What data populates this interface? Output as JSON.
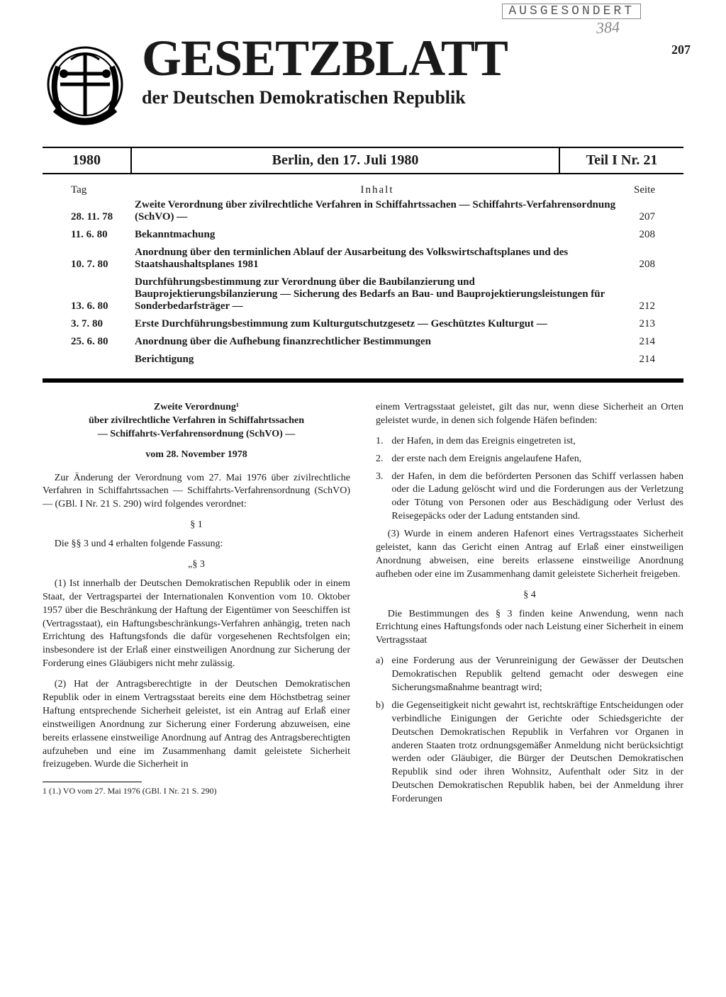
{
  "stamp": "AUSGESONDERT",
  "stamp_scribble": "384",
  "page_number_top": "207",
  "masthead": {
    "title": "GESETZBLATT",
    "subtitle": "der Deutschen Demokratischen Republik"
  },
  "issue_bar": {
    "year": "1980",
    "dateline": "Berlin, den 17. Juli 1980",
    "issue": "Teil I Nr. 21"
  },
  "toc": {
    "head_tag": "Tag",
    "head_title": "Inhalt",
    "head_page": "Seite",
    "rows": [
      {
        "tag": "28. 11. 78",
        "title": "Zweite Verordnung über zivilrechtliche Verfahren in Schiffahrtssachen — Schiffahrts-Verfahrensordnung (SchVO) —",
        "page": "207"
      },
      {
        "tag": "11. 6. 80",
        "title": "Bekanntmachung",
        "page": "208"
      },
      {
        "tag": "10. 7. 80",
        "title": "Anordnung über den terminlichen Ablauf der Ausarbeitung des Volkswirtschaftsplanes und des Staatshaushaltsplanes 1981",
        "page": "208"
      },
      {
        "tag": "13. 6. 80",
        "title": "Durchführungsbestimmung zur Verordnung über die Baubilanzierung und Bauprojektierungsbilanzierung — Sicherung des Bedarfs an Bau- und Bauprojektierungsleistungen für Sonderbedarfsträger —",
        "page": "212"
      },
      {
        "tag": "3. 7. 80",
        "title": "Erste Durchführungsbestimmung zum Kulturgutschutzgesetz — Geschütztes Kulturgut —",
        "page": "213"
      },
      {
        "tag": "25. 6. 80",
        "title": "Anordnung über die Aufhebung finanzrechtlicher Bestimmungen",
        "page": "214"
      },
      {
        "tag": "",
        "title": "Berichtigung",
        "page": "214"
      }
    ]
  },
  "article": {
    "heading_l1": "Zweite Verordnung¹",
    "heading_l2": "über zivilrechtliche Verfahren in Schiffahrtssachen",
    "heading_l3": "— Schiffahrts-Verfahrensordnung (SchVO) —",
    "heading_l4": "vom 28. November 1978",
    "intro": "Zur Änderung der Verordnung vom 27. Mai 1976 über zivilrechtliche Verfahren in Schiffahrtssachen — Schiffahrts-Verfahrensordnung (SchVO) — (GBl. I Nr. 21 S. 290) wird folgendes verordnet:",
    "s1_label": "§ 1",
    "s1_text": "Die §§ 3 und 4 erhalten folgende Fassung:",
    "s3_label": "„§ 3",
    "s3_p1": "(1) Ist innerhalb der Deutschen Demokratischen Republik oder in einem Staat, der Vertragspartei der Internationalen Konvention vom 10. Oktober 1957 über die Beschränkung der Haftung der Eigentümer von Seeschiffen ist (Vertragsstaat), ein Haftungsbeschränkungs-Verfahren anhängig, treten nach Errichtung des Haftungsfonds die dafür vorgesehenen Rechtsfolgen ein; insbesondere ist der Erlaß einer einstweiligen Anordnung zur Sicherung der Forderung eines Gläubigers nicht mehr zulässig.",
    "s3_p2": "(2) Hat der Antragsberechtigte in der Deutschen Demokratischen Republik oder in einem Vertragsstaat bereits eine dem Höchstbetrag seiner Haftung entsprechende Sicherheit geleistet, ist ein Antrag auf Erlaß einer einstweiligen Anordnung zur Sicherung einer Forderung abzuweisen, eine bereits erlassene einstweilige Anordnung auf Antrag des Antragsberechtigten aufzuheben und eine im Zusammenhang damit geleistete Sicherheit freizugeben. Wurde die Sicherheit in",
    "s3_p2b": "einem Vertragsstaat geleistet, gilt das nur, wenn diese Sicherheit an Orten geleistet wurde, in denen sich folgende Häfen befinden:",
    "s3_p2_items": [
      {
        "m": "1.",
        "t": "der Hafen, in dem das Ereignis eingetreten ist,"
      },
      {
        "m": "2.",
        "t": "der erste nach dem Ereignis angelaufene Hafen,"
      },
      {
        "m": "3.",
        "t": "der Hafen, in dem die beförderten Personen das Schiff verlassen haben oder die Ladung gelöscht wird und die Forderungen aus der Verletzung oder Tötung von Personen oder aus Beschädigung oder Verlust des Reisegepäcks oder der Ladung entstanden sind."
      }
    ],
    "s3_p3": "(3) Wurde in einem anderen Hafenort eines Vertragsstaates Sicherheit geleistet, kann das Gericht einen Antrag auf Erlaß einer einstweiligen Anordnung abweisen, eine bereits erlassene einstweilige Anordnung aufheben oder eine im Zusammenhang damit geleistete Sicherheit freigeben.",
    "s4_label": "§ 4",
    "s4_p1": "Die Bestimmungen des § 3 finden keine Anwendung, wenn nach Errichtung eines Haftungsfonds oder nach Leistung einer Sicherheit in einem Vertragsstaat",
    "s4_items": [
      {
        "m": "a)",
        "t": "eine Forderung aus der Verunreinigung der Gewässer der Deutschen Demokratischen Republik geltend gemacht oder deswegen eine Sicherungsmaßnahme beantragt wird;"
      },
      {
        "m": "b)",
        "t": "die Gegenseitigkeit nicht gewahrt ist, rechtskräftige Entscheidungen oder verbindliche Einigungen der Gerichte oder Schiedsgerichte der Deutschen Demokratischen Republik in Verfahren vor Organen in anderen Staaten trotz ordnungsgemäßer Anmeldung nicht berücksichtigt werden oder Gläubiger, die Bürger der Deutschen Demokratischen Republik sind oder ihren Wohnsitz, Aufenthalt oder Sitz in der Deutschen Demokratischen Republik haben, bei der Anmeldung ihrer Forderungen"
      }
    ],
    "footnote": "1 (1.) VO vom 27. Mai 1976 (GBl. I Nr. 21 S. 290)"
  }
}
